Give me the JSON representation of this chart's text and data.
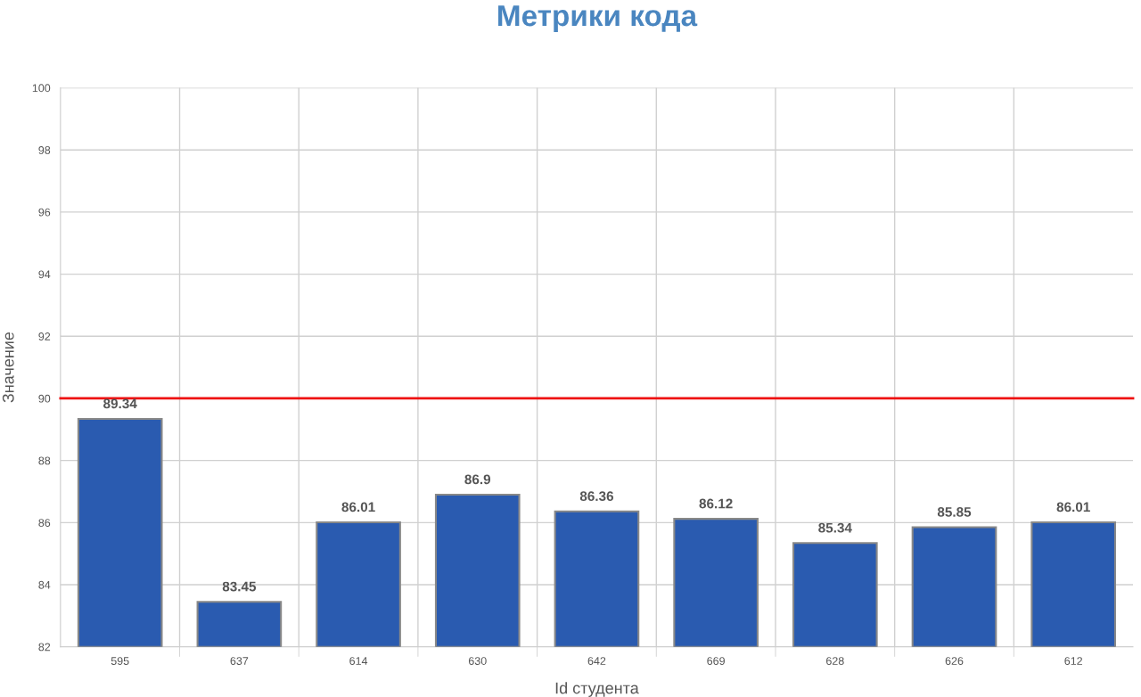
{
  "chart_data": {
    "type": "bar",
    "title": "Метрики кода",
    "xlabel": "Id студента",
    "ylabel": "Значение",
    "categories": [
      "595",
      "637",
      "614",
      "630",
      "642",
      "669",
      "628",
      "626",
      "612"
    ],
    "values": [
      89.34,
      83.45,
      86.01,
      86.9,
      86.36,
      86.12,
      85.34,
      85.85,
      86.01
    ],
    "color": "#2a5bb0",
    "ylim": [
      82,
      100
    ],
    "yticks": [
      82,
      84,
      86,
      88,
      90,
      92,
      94,
      96,
      98,
      100
    ],
    "grid": true,
    "data_labels": true,
    "ref_lines": [
      {
        "axis": "y",
        "value": 90,
        "color": "#ee1111"
      }
    ]
  }
}
